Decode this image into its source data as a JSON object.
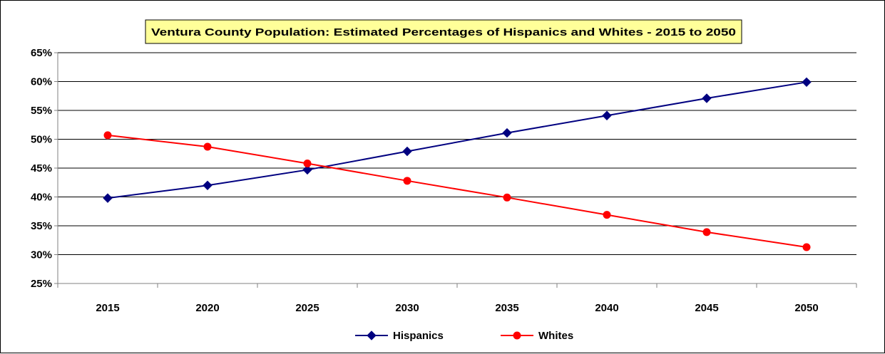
{
  "chart_data": {
    "type": "line",
    "title": "Ventura County Population: Estimated Percentages of Hispanics and Whites - 2015 to 2050",
    "categories": [
      "2015",
      "2020",
      "2025",
      "2030",
      "2035",
      "2040",
      "2045",
      "2050"
    ],
    "series": [
      {
        "name": "Hispanics",
        "values": [
          39.8,
          42.0,
          44.7,
          47.9,
          51.1,
          54.1,
          57.1,
          59.9
        ],
        "color": "#000080",
        "marker": "diamond"
      },
      {
        "name": "Whites",
        "values": [
          50.7,
          48.7,
          45.8,
          42.8,
          39.9,
          36.9,
          33.9,
          31.3
        ],
        "color": "#ff0000",
        "marker": "circle"
      }
    ],
    "ylim": [
      25,
      65
    ],
    "yticks": [
      "25%",
      "30%",
      "35%",
      "40%",
      "45%",
      "50%",
      "55%",
      "60%",
      "65%"
    ],
    "xlabel": "",
    "ylabel": "",
    "grid": true,
    "legend": "bottom",
    "title_background": "#ffff99"
  }
}
